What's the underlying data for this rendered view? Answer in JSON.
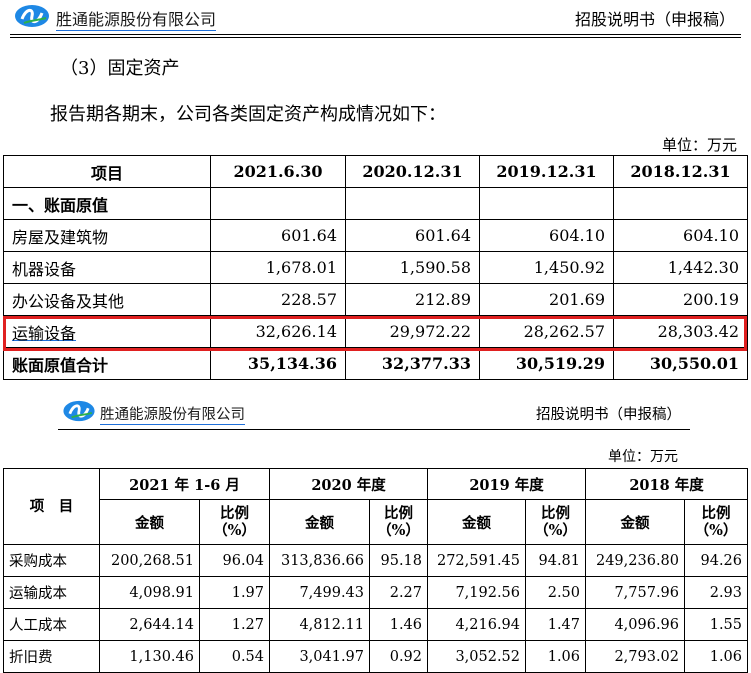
{
  "header1": {
    "company": "胜通能源股份有限公司",
    "doc_type": "招股说明书（申报稿）"
  },
  "section": {
    "heading": "（3）固定资产",
    "intro": "报告期各期末，公司各类固定资产构成情况如下：",
    "unit": "单位：万元"
  },
  "table1": {
    "headers": [
      "项目",
      "2021.6.30",
      "2020.12.31",
      "2019.12.31",
      "2018.12.31"
    ],
    "rows": [
      {
        "label": "一、账面原值",
        "values": [
          "",
          "",
          "",
          ""
        ]
      },
      {
        "label": "房屋及建筑物",
        "values": [
          "601.64",
          "601.64",
          "604.10",
          "604.10"
        ]
      },
      {
        "label": "机器设备",
        "values": [
          "1,678.01",
          "1,590.58",
          "1,450.92",
          "1,442.30"
        ]
      },
      {
        "label": "办公设备及其他",
        "values": [
          "228.57",
          "212.89",
          "201.69",
          "200.19"
        ]
      },
      {
        "label": "运输设备",
        "values": [
          "32,626.14",
          "29,972.22",
          "28,262.57",
          "28,303.42"
        ]
      },
      {
        "label": "账面原值合计",
        "values": [
          "35,134.36",
          "32,377.33",
          "30,519.29",
          "30,550.01"
        ]
      }
    ],
    "highlight_color": "#e02020"
  },
  "header2": {
    "company": "胜通能源股份有限公司",
    "doc_type": "招股说明书（申报稿）",
    "unit": "单位：万元"
  },
  "table2": {
    "item_header": "项　目",
    "periods": [
      "2021 年 1-6 月",
      "2020 年度",
      "2019 年度",
      "2018 年度"
    ],
    "amount_label": "金额",
    "ratio_label": "比例（%）",
    "rows": [
      {
        "label": "采购成本",
        "values": [
          "200,268.51",
          "96.04",
          "313,836.66",
          "95.18",
          "272,591.45",
          "94.81",
          "249,236.80",
          "94.26"
        ]
      },
      {
        "label": "运输成本",
        "values": [
          "4,098.91",
          "1.97",
          "7,499.43",
          "2.27",
          "7,192.56",
          "2.50",
          "7,757.96",
          "2.93"
        ]
      },
      {
        "label": "人工成本",
        "values": [
          "2,644.14",
          "1.27",
          "4,812.11",
          "1.46",
          "4,216.94",
          "1.47",
          "4,096.96",
          "1.55"
        ]
      },
      {
        "label": "折旧费",
        "values": [
          "1,130.46",
          "0.54",
          "3,041.97",
          "0.92",
          "3,052.52",
          "1.06",
          "2,793.02",
          "1.06"
        ]
      }
    ]
  },
  "colors": {
    "logo_blue": "#1e88e5",
    "logo_green": "#2db04b",
    "company_underline": "#1e6fd9"
  }
}
